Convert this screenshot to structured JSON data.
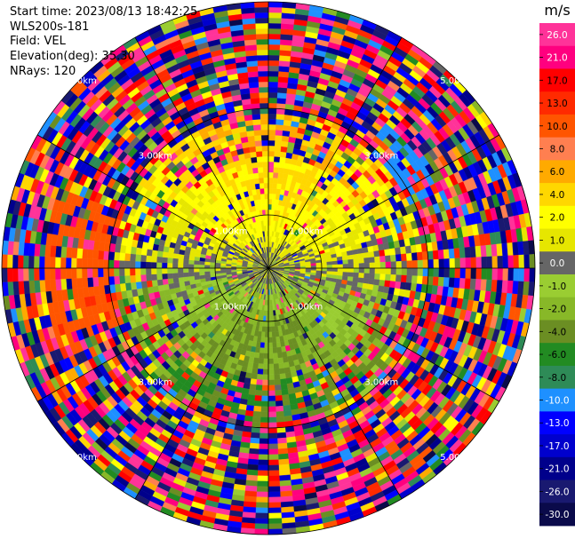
{
  "header": {
    "start_time": "Start time: 2023/08/13 18:42:25",
    "instrument": "WLS200s-181",
    "field": "Field: VEL",
    "elevation": "Elevation(deg): 35.30",
    "nrays": "NRays: 120"
  },
  "chart_data": {
    "type": "heatmap",
    "projection": "polar",
    "field": "VEL",
    "n_rays": 120,
    "range_rings_km": [
      1.0,
      3.0,
      5.0
    ],
    "ring_labels": [
      "1.00km",
      "3.00km",
      "5.00km"
    ],
    "max_range_km": 5.0,
    "azimuth_spoke_step_deg": 30,
    "colorbar": {
      "unit": "m/s",
      "tick_labels": [
        "26.0",
        "21.0",
        "17.0",
        "13.0",
        "10.0",
        "8.0",
        "6.0",
        "4.0",
        "2.0",
        "1.0",
        "0.0",
        "-1.0",
        "-2.0",
        "-4.0",
        "-6.0",
        "-8.0",
        "-10.0",
        "-13.0",
        "-17.0",
        "-21.0",
        "-26.0",
        "-30.0"
      ],
      "colors": [
        "#ff3399",
        "#ff007f",
        "#ff0000",
        "#ff2a00",
        "#ff5500",
        "#ff7f50",
        "#ffaa00",
        "#ffd700",
        "#ffff00",
        "#e6e600",
        "#666666",
        "#9acd32",
        "#88b828",
        "#6b8e23",
        "#228b22",
        "#2e8b57",
        "#1e90ff",
        "#0000ff",
        "#0000cd",
        "#00008b",
        "#191970",
        "#0a0a4a"
      ]
    }
  }
}
